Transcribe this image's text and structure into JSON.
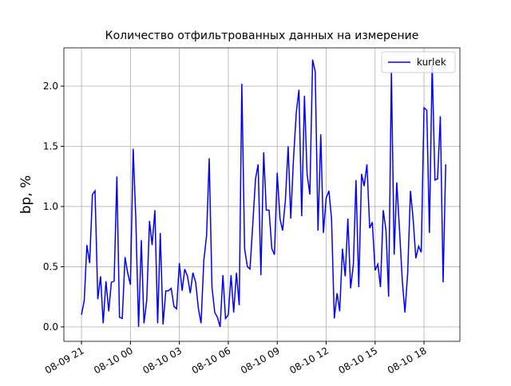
{
  "chart_data": {
    "type": "line",
    "title": "Количество отфильтрованных данных на измерение",
    "ylabel": "bp, %",
    "x": [
      0,
      0.17,
      0.33,
      0.5,
      0.67,
      0.83,
      1,
      1.17,
      1.33,
      1.5,
      1.67,
      1.83,
      2,
      2.17,
      2.33,
      2.5,
      2.67,
      2.83,
      3,
      3.17,
      3.33,
      3.5,
      3.67,
      3.83,
      4,
      4.17,
      4.33,
      4.5,
      4.67,
      4.83,
      5,
      5.17,
      5.33,
      5.5,
      5.67,
      5.83,
      6,
      6.17,
      6.33,
      6.5,
      6.67,
      6.83,
      7,
      7.17,
      7.33,
      7.5,
      7.67,
      7.83,
      8,
      8.17,
      8.33,
      8.5,
      8.67,
      8.83,
      9,
      9.17,
      9.33,
      9.5,
      9.67,
      9.83,
      10,
      10.17,
      10.33,
      10.5,
      10.67,
      10.83,
      11,
      11.17,
      11.33,
      11.5,
      11.67,
      11.83,
      12,
      12.17,
      12.33,
      12.5,
      12.67,
      12.83,
      13,
      13.17,
      13.33,
      13.5,
      13.67,
      13.83,
      14,
      14.17,
      14.33,
      14.5,
      14.67,
      14.83,
      15,
      15.17,
      15.33,
      15.5,
      15.67,
      15.83,
      16,
      16.17,
      16.33,
      16.5,
      16.67,
      16.83,
      17,
      17.17,
      17.33,
      17.5,
      17.67,
      17.83,
      18,
      18.17,
      18.33,
      18.5,
      18.67,
      18.83,
      19,
      19.17,
      19.33,
      19.5,
      19.67,
      19.83,
      20,
      20.17,
      20.33,
      20.5,
      20.67,
      20.83,
      21,
      21.17,
      21.33,
      21.5,
      21.67,
      21.83,
      22,
      22.17,
      22.33
    ],
    "series": [
      {
        "name": "kurlek",
        "color": "#0000ff",
        "values": [
          0.1,
          0.22,
          0.68,
          0.53,
          1.1,
          1.13,
          0.23,
          0.42,
          0.03,
          0.38,
          0.13,
          0.37,
          0.38,
          1.25,
          0.08,
          0.07,
          0.58,
          0.45,
          0.35,
          1.48,
          0.9,
          0.0,
          0.72,
          0.03,
          0.22,
          0.88,
          0.68,
          0.97,
          0.03,
          0.78,
          0.02,
          0.3,
          0.3,
          0.32,
          0.17,
          0.15,
          0.53,
          0.3,
          0.48,
          0.42,
          0.28,
          0.45,
          0.37,
          0.15,
          0.03,
          0.55,
          0.76,
          1.4,
          0.33,
          0.12,
          0.08,
          0.0,
          0.43,
          0.07,
          0.1,
          0.43,
          0.12,
          0.45,
          0.18,
          2.02,
          0.65,
          0.5,
          0.48,
          0.85,
          1.23,
          1.35,
          0.43,
          1.45,
          0.97,
          0.97,
          0.65,
          0.6,
          1.28,
          0.9,
          0.8,
          1.05,
          1.5,
          0.9,
          1.4,
          1.78,
          1.97,
          0.92,
          1.92,
          1.27,
          1.1,
          2.22,
          2.12,
          0.8,
          1.6,
          0.78,
          1.07,
          1.13,
          0.9,
          0.07,
          0.28,
          0.13,
          0.65,
          0.42,
          0.9,
          0.32,
          0.52,
          1.22,
          0.33,
          1.27,
          1.17,
          1.35,
          0.82,
          0.87,
          0.47,
          0.52,
          0.33,
          0.97,
          0.8,
          0.25,
          2.12,
          0.6,
          1.2,
          0.8,
          0.38,
          0.12,
          0.45,
          1.13,
          0.9,
          0.57,
          0.67,
          0.62,
          1.82,
          1.8,
          0.78,
          2.18,
          1.22,
          1.23,
          1.75,
          0.37,
          1.35
        ]
      }
    ],
    "xlim": [
      -1.08,
      23.2
    ],
    "xticks": [
      {
        "value": 0,
        "label": "08-09 21"
      },
      {
        "value": 3,
        "label": "08-10 00"
      },
      {
        "value": 6,
        "label": "08-10 03"
      },
      {
        "value": 9,
        "label": "08-10 06"
      },
      {
        "value": 12,
        "label": "08-10 09"
      },
      {
        "value": 15,
        "label": "08-10 12"
      },
      {
        "value": 18,
        "label": "08-10 15"
      },
      {
        "value": 21,
        "label": "08-10 18"
      }
    ],
    "ylim": [
      -0.12,
      2.318
    ],
    "yticks": [
      {
        "value": 0,
        "label": "0.0"
      },
      0.5,
      {
        "value": 1,
        "label": "1.0"
      },
      1.5,
      {
        "value": 2,
        "label": "2.0"
      }
    ],
    "grid": true,
    "legend": "upper right"
  }
}
